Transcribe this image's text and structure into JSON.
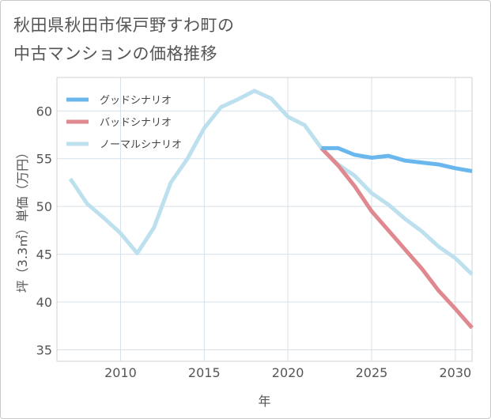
{
  "title": {
    "line1": "秋田県秋田市保戸野すわ町の",
    "line2": "中古マンションの価格推移"
  },
  "chart_data": {
    "type": "line",
    "xlabel": "年",
    "ylabel": "坪（3.3㎡）単価（万円）",
    "xlim": [
      2006.2,
      2031
    ],
    "ylim": [
      33.8,
      63.5
    ],
    "xticks": [
      2010,
      2015,
      2020,
      2025,
      2030
    ],
    "yticks": [
      35,
      40,
      45,
      50,
      55,
      60
    ],
    "legend_position": "top-left",
    "series": [
      {
        "name": "グッドシナリオ",
        "color": "#6ab7ee",
        "x": [
          2022,
          2023,
          2024,
          2025,
          2026,
          2027,
          2028,
          2029,
          2030,
          2031
        ],
        "values": [
          56.1,
          56.1,
          55.4,
          55.1,
          55.3,
          54.8,
          54.6,
          54.4,
          54.0,
          53.7
        ]
      },
      {
        "name": "バッドシナリオ",
        "color": "#e0888f",
        "x": [
          2022,
          2023,
          2024,
          2025,
          2026,
          2027,
          2028,
          2029,
          2030,
          2031
        ],
        "values": [
          56.1,
          54.3,
          52.1,
          49.5,
          47.5,
          45.5,
          43.5,
          41.2,
          39.3,
          37.3
        ]
      },
      {
        "name": "ノーマルシナリオ",
        "color": "#bde0ee",
        "x": [
          2007,
          2008,
          2009,
          2010,
          2011,
          2012,
          2013,
          2014,
          2015,
          2016,
          2017,
          2018,
          2019,
          2020,
          2021,
          2022,
          2023,
          2024,
          2025,
          2026,
          2027,
          2028,
          2029,
          2030,
          2031
        ],
        "values": [
          52.9,
          50.3,
          48.8,
          47.2,
          45.1,
          47.8,
          52.5,
          55.0,
          58.2,
          60.4,
          61.2,
          62.1,
          61.3,
          59.4,
          58.5,
          56.1,
          54.4,
          53.2,
          51.4,
          50.2,
          48.7,
          47.4,
          45.8,
          44.6,
          42.9
        ]
      }
    ]
  }
}
